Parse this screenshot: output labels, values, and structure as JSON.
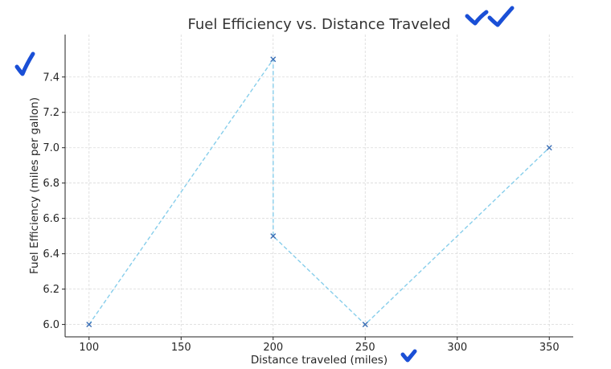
{
  "chart_data": {
    "type": "line",
    "title": "Fuel Efficiency vs. Distance Traveled",
    "xlabel": "Distance traveled (miles)",
    "ylabel": "Fuel Efficiency (miles per gallon)",
    "xlim": [
      87,
      363
    ],
    "ylim": [
      5.93,
      7.64
    ],
    "x_ticks": [
      100,
      150,
      200,
      250,
      300,
      350
    ],
    "y_ticks": [
      6.0,
      6.2,
      6.4,
      6.6,
      6.8,
      7.0,
      7.2,
      7.4
    ],
    "x_tick_labels": [
      "100",
      "150",
      "200",
      "250",
      "300",
      "350"
    ],
    "y_tick_labels": [
      "6.0",
      "6.2",
      "6.4",
      "6.6",
      "6.8",
      "7.0",
      "7.2",
      "7.4"
    ],
    "grid": true,
    "line_style": "dashed",
    "marker": "x",
    "series": [
      {
        "x": [
          100,
          200,
          200,
          250,
          350
        ],
        "y": [
          6.0,
          7.5,
          6.5,
          6.0,
          7.0
        ],
        "color": "#87ceeb"
      }
    ],
    "annotation_color": "#1a4fd6"
  }
}
